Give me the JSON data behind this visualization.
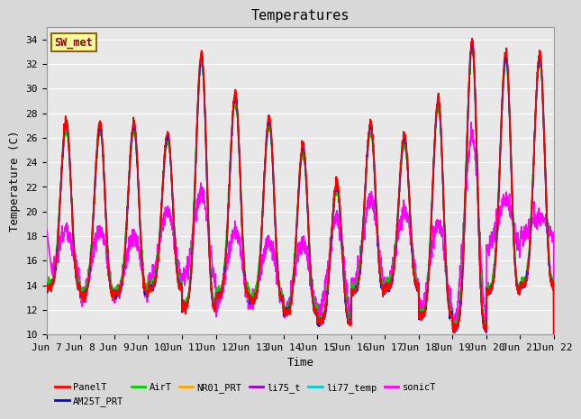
{
  "title": "Temperatures",
  "xlabel": "Time",
  "ylabel": "Temperature (C)",
  "ylim": [
    10,
    35
  ],
  "series": {
    "PanelT": {
      "color": "#ff0000",
      "lw": 1.2
    },
    "AM25T_PRT": {
      "color": "#0000ff",
      "lw": 1.2
    },
    "AirT": {
      "color": "#00cc00",
      "lw": 1.2
    },
    "NR01_PRT": {
      "color": "#ffa500",
      "lw": 1.2
    },
    "li75_t": {
      "color": "#9900cc",
      "lw": 1.2
    },
    "li77_temp": {
      "color": "#00cccc",
      "lw": 1.2
    },
    "sonicT": {
      "color": "#ff00ff",
      "lw": 1.2
    }
  },
  "xtick_labels": [
    "Jun 7",
    "Jun 8",
    "Jun 9",
    "Jun 10",
    "Jun 11",
    "Jun 12",
    "Jun 13",
    "Jun 14",
    "Jun 15",
    "Jun 16",
    "Jun 17",
    "Jun 18",
    "Jun 19",
    "Jun 20",
    "Jun 21",
    "Jun 22"
  ],
  "station_label": "SW_met",
  "station_label_color": "#8b0000",
  "station_box_edgecolor": "#8b6914",
  "station_box_facecolor": "#ffff99",
  "bg_color": "#e8e8e8",
  "grid_color": "#ffffff",
  "font_family": "monospace",
  "tick_fontsize": 8,
  "label_fontsize": 9,
  "title_fontsize": 11,
  "day_peaks": [
    27.5,
    27.3,
    27.3,
    26.5,
    33.0,
    29.7,
    27.7,
    25.5,
    22.5,
    27.3,
    26.3,
    29.3,
    34.0,
    33.0,
    32.9
  ],
  "day_troughs": [
    13.8,
    13.2,
    13.3,
    13.8,
    12.2,
    13.2,
    12.8,
    11.8,
    11.0,
    13.5,
    13.8,
    11.5,
    10.5,
    13.5,
    14.0
  ],
  "sonic_peaks": [
    18.5,
    18.5,
    18.0,
    20.0,
    21.5,
    18.5,
    17.5,
    17.5,
    19.5,
    21.0,
    20.0,
    19.0,
    26.0,
    21.0,
    19.5
  ],
  "sonic_troughs": [
    14.5,
    13.0,
    13.0,
    14.5,
    14.5,
    12.5,
    12.5,
    12.0,
    11.5,
    14.0,
    14.0,
    12.0,
    11.0,
    17.0,
    18.0
  ]
}
